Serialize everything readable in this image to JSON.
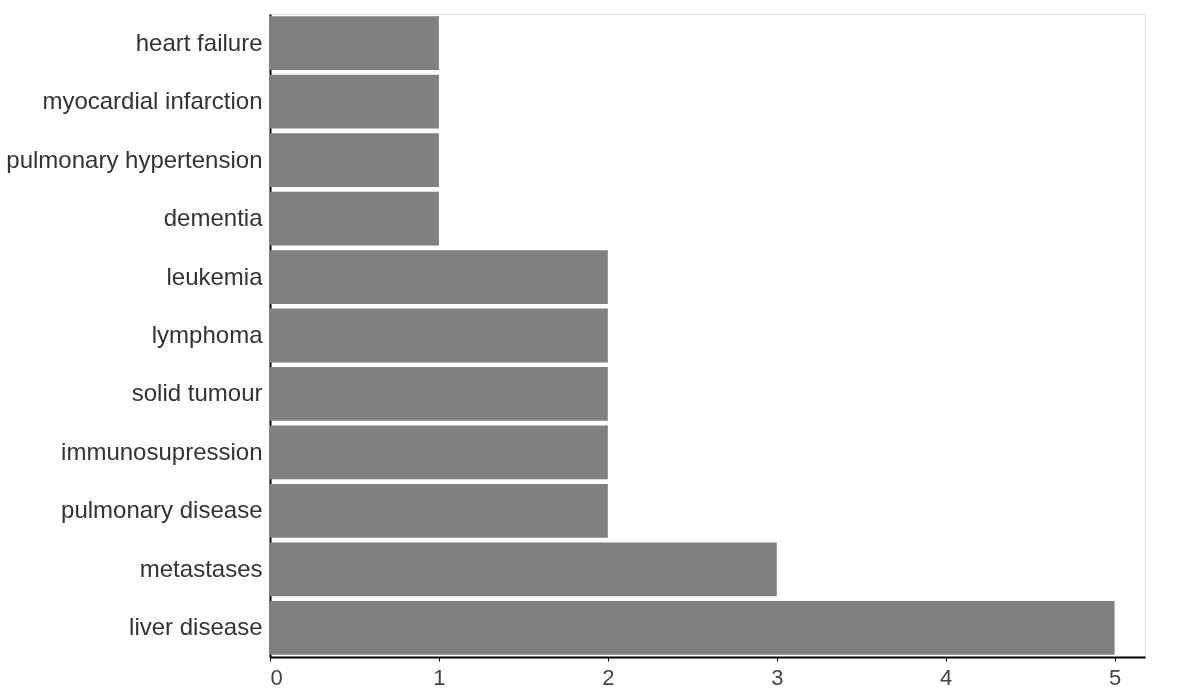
{
  "chart_data": {
    "type": "bar",
    "orientation": "horizontal",
    "categories": [
      "heart failure",
      "myocardial infarction",
      "pulmonary hypertension",
      "dementia",
      "leukemia",
      "lymphoma",
      "solid tumour",
      "immunosupression",
      "pulmonary disease",
      "metastases",
      "liver disease"
    ],
    "values": [
      1,
      1,
      1,
      1,
      2,
      2,
      2,
      2,
      2,
      3,
      5
    ],
    "color": "#808080",
    "xlim": [
      0,
      5.18
    ],
    "xticks": [
      0,
      1,
      2,
      3,
      4,
      5
    ],
    "grid": false
  }
}
